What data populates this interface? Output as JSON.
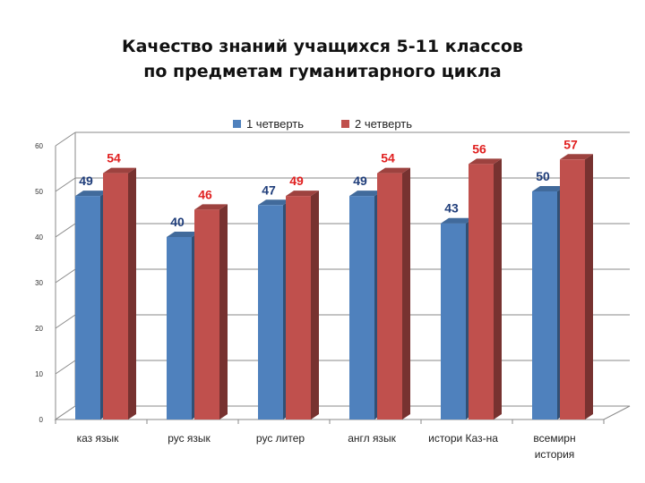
{
  "title": {
    "line1": "Качество знаний учащихся 5-11 классов",
    "line2": "по предметам гуманитарного цикла"
  },
  "legend": [
    {
      "name": "1 четверть",
      "color": "#4F81BD"
    },
    {
      "name": "2 четверть",
      "color": "#C0504D"
    }
  ],
  "chart_data": {
    "type": "bar",
    "categories": [
      [
        "каз  язык"
      ],
      [
        "рус язык"
      ],
      [
        "рус литер"
      ],
      [
        "англ язык"
      ],
      [
        "истори Каз-на"
      ],
      [
        "всемирн",
        "история"
      ]
    ],
    "series": [
      {
        "name": "1 четверть",
        "values": [
          49,
          40,
          47,
          49,
          43,
          50
        ],
        "color": "#4F81BD",
        "label_color": "#1F3D7A"
      },
      {
        "name": "2 четверть",
        "values": [
          54,
          46,
          49,
          54,
          56,
          57
        ],
        "color": "#C0504D",
        "label_color": "#E02020"
      }
    ],
    "ylim": [
      0,
      60
    ],
    "yticks": [
      0,
      10,
      20,
      30,
      40,
      50,
      60
    ],
    "grid": true,
    "legend_position": "top"
  }
}
